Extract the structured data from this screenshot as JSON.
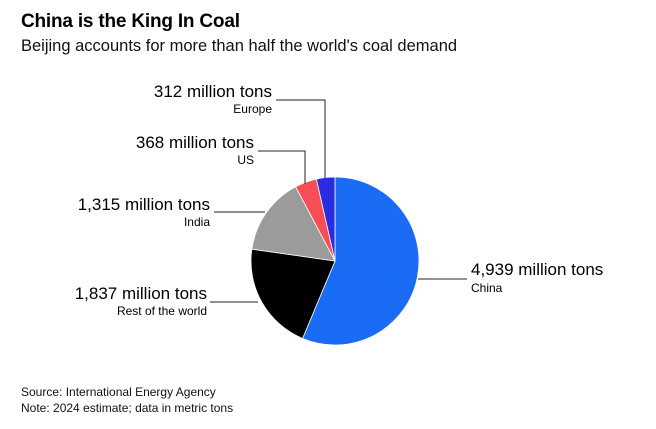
{
  "title": "China is the King In Coal",
  "subtitle": "Beijing accounts for more than half the world's coal demand",
  "source": "Source: International Energy Agency",
  "note": "Note: 2024 estimate; data in metric tons",
  "chart_data": {
    "type": "pie",
    "title": "China is the King In Coal",
    "unit": "million tons",
    "start": "12 o'clock, clockwise",
    "slices": [
      {
        "key": "china",
        "name": "China",
        "value": 4939,
        "label": "4,939 million tons",
        "color": "#1a6cf5"
      },
      {
        "key": "rest",
        "name": "Rest of the world",
        "value": 1837,
        "label": "1,837 million tons",
        "color": "#000000"
      },
      {
        "key": "india",
        "name": "India",
        "value": 1315,
        "label": "1,315 million tons",
        "color": "#9b9b9b"
      },
      {
        "key": "us",
        "name": "US",
        "value": 368,
        "label": "368 million tons",
        "color": "#f74d57"
      },
      {
        "key": "europe",
        "name": "Europe",
        "value": 312,
        "label": "312 million tons",
        "color": "#2b2bdf"
      }
    ]
  }
}
